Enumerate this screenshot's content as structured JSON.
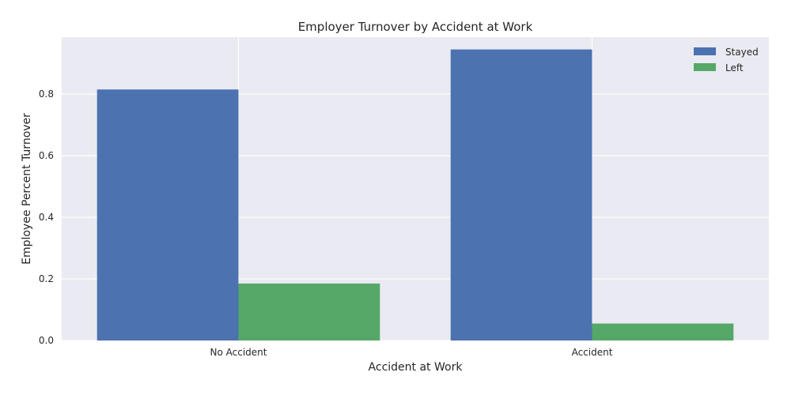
{
  "chart_data": {
    "type": "bar",
    "title": "Employer Turnover by Accident at Work",
    "xlabel": "Accident at Work",
    "ylabel": "Employee Percent Turnover",
    "categories": [
      "No Accident",
      "Accident"
    ],
    "series": [
      {
        "name": "Stayed",
        "values": [
          0.815,
          0.945
        ],
        "color": "#4c72b0"
      },
      {
        "name": "Left",
        "values": [
          0.185,
          0.055
        ],
        "color": "#55a868"
      }
    ],
    "ylim": [
      0,
      0.985
    ],
    "yticks": [
      0.0,
      0.2,
      0.4,
      0.6,
      0.8
    ],
    "ytick_labels": [
      "0.0",
      "0.2",
      "0.4",
      "0.6",
      "0.8"
    ],
    "grid": true,
    "legend_position": "top-right",
    "background_color": "#eaeaf2",
    "grid_color": "#ffffff"
  }
}
